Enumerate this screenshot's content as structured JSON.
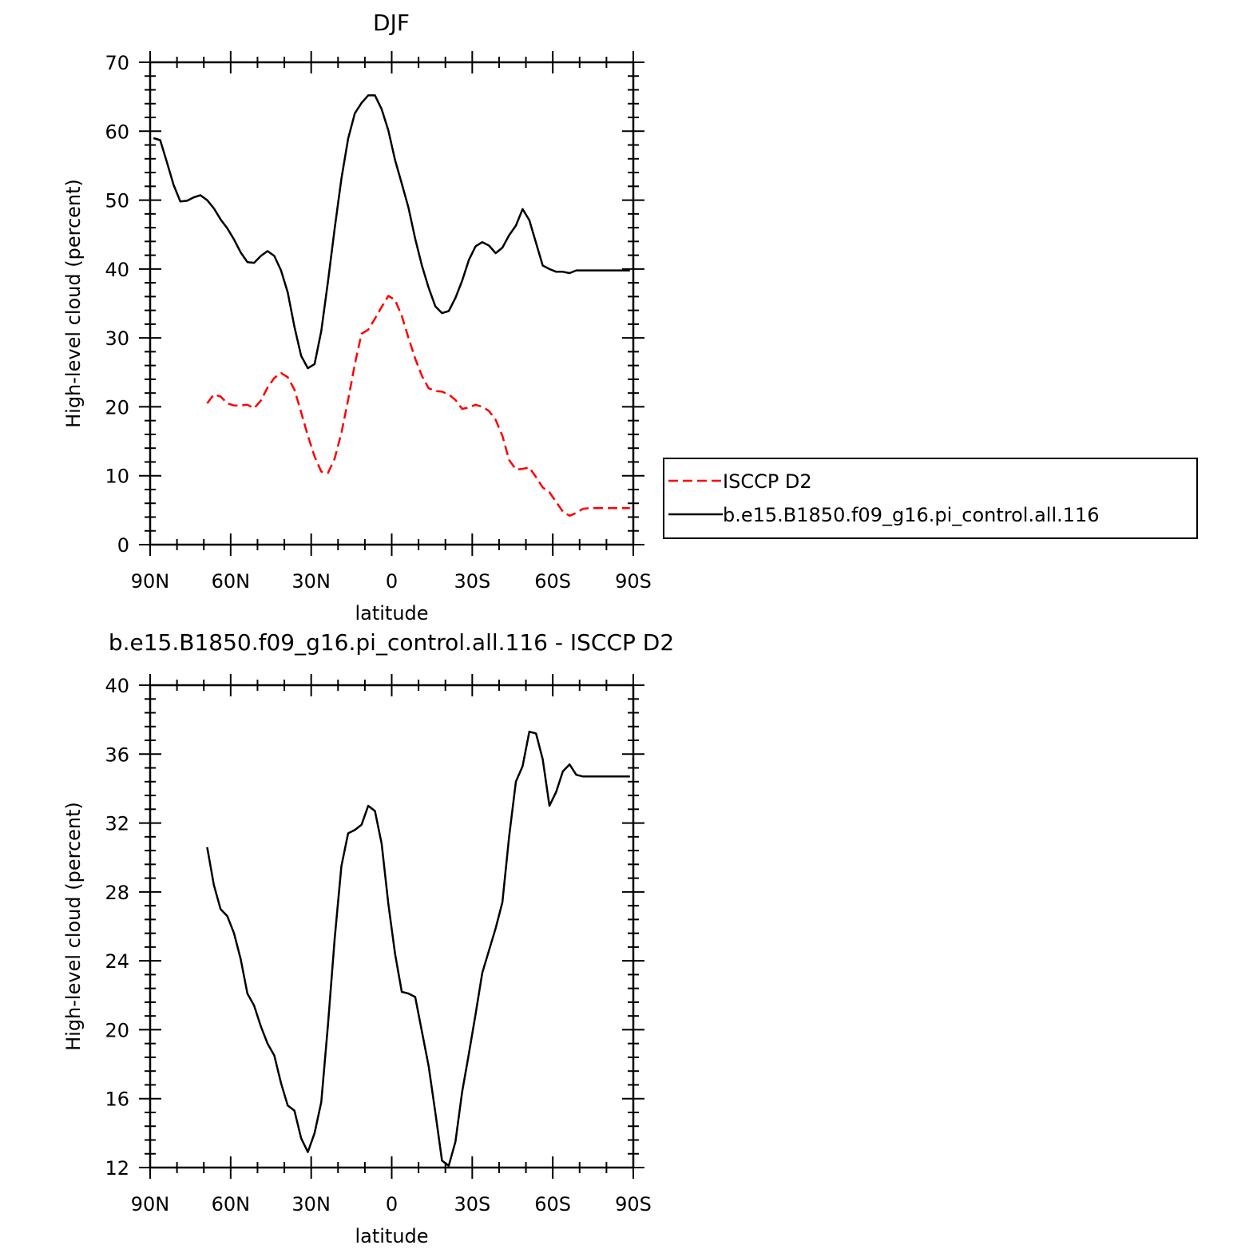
{
  "chart_data": [
    {
      "type": "line",
      "title": "DJF",
      "xlabel": "latitude",
      "ylabel": "High-level cloud (percent)",
      "xlim": [
        90,
        -90
      ],
      "ylim": [
        0,
        70
      ],
      "xticks": [
        90,
        60,
        30,
        0,
        -30,
        -60,
        -90
      ],
      "xtick_labels": [
        "90N",
        "60N",
        "30N",
        "0",
        "30S",
        "60S",
        "90S"
      ],
      "yticks": [
        0,
        10,
        20,
        30,
        40,
        50,
        60,
        70
      ],
      "ytick_labels": [
        "0",
        "10",
        "20",
        "30",
        "40",
        "50",
        "60",
        "70"
      ],
      "grid": false,
      "legend": "right",
      "series": [
        {
          "name": "ISCCP D2",
          "color": "#ff0000",
          "dash": "dashed",
          "x": [
            68.75,
            66.25,
            63.75,
            61.25,
            58.75,
            56.25,
            53.75,
            51.25,
            48.75,
            46.25,
            43.75,
            41.25,
            38.75,
            36.25,
            33.75,
            31.25,
            28.75,
            26.25,
            23.75,
            21.25,
            18.75,
            16.25,
            13.75,
            11.25,
            8.75,
            6.25,
            3.75,
            1.25,
            -1.25,
            -3.75,
            -6.25,
            -8.75,
            -11.25,
            -13.75,
            -16.25,
            -18.75,
            -21.25,
            -23.75,
            -26.25,
            -28.75,
            -31.25,
            -33.75,
            -36.25,
            -38.75,
            -41.25,
            -43.75,
            -46.25,
            -48.75,
            -51.25,
            -53.75,
            -56.25,
            -58.75,
            -61.25,
            -63.75,
            -66.25,
            -68.75,
            -71.25,
            -73.75,
            -76.25,
            -78.75,
            -81.25,
            -83.75,
            -86.25,
            -88.75
          ],
          "y": [
            20.5,
            21.8,
            21.5,
            20.5,
            20.2,
            20.2,
            20.3,
            19.8,
            20.9,
            22.8,
            24.2,
            24.9,
            24.3,
            22.5,
            19.2,
            15.8,
            12.8,
            10.6,
            10.4,
            12.5,
            16.2,
            21.0,
            26.2,
            30.6,
            31.2,
            32.8,
            34.5,
            36.1,
            35.5,
            33.2,
            30.0,
            27.0,
            24.5,
            22.7,
            22.3,
            22.2,
            21.8,
            21.0,
            19.7,
            19.9,
            20.3,
            20.0,
            19.4,
            18.1,
            15.8,
            12.3,
            10.9,
            11.0,
            11.2,
            9.8,
            8.3,
            7.6,
            6.2,
            4.8,
            4.2,
            4.6,
            5.2,
            5.3,
            5.3,
            5.3,
            5.3,
            5.3,
            5.3,
            5.3
          ]
        },
        {
          "name": "b.e15.B1850.f09_g16.pi_control.all.116",
          "color": "#000000",
          "dash": "solid",
          "x": [
            88.75,
            86.25,
            83.75,
            81.25,
            78.75,
            76.25,
            73.75,
            71.25,
            68.75,
            66.25,
            63.75,
            61.25,
            58.75,
            56.25,
            53.75,
            51.25,
            48.75,
            46.25,
            43.75,
            41.25,
            38.75,
            36.25,
            33.75,
            31.25,
            28.75,
            26.25,
            23.75,
            21.25,
            18.75,
            16.25,
            13.75,
            11.25,
            8.75,
            6.25,
            3.75,
            1.25,
            -1.25,
            -3.75,
            -6.25,
            -8.75,
            -11.25,
            -13.75,
            -16.25,
            -18.75,
            -21.25,
            -23.75,
            -26.25,
            -28.75,
            -31.25,
            -33.75,
            -36.25,
            -38.75,
            -41.25,
            -43.75,
            -46.25,
            -48.75,
            -51.25,
            -53.75,
            -56.25,
            -58.75,
            -61.25,
            -63.75,
            -66.25,
            -68.75,
            -71.25,
            -73.75,
            -76.25,
            -78.75,
            -81.25,
            -83.75,
            -86.25,
            -88.75
          ],
          "y": [
            59.0,
            58.7,
            55.5,
            52.2,
            49.8,
            49.9,
            50.4,
            50.7,
            50.0,
            48.8,
            47.2,
            45.9,
            44.3,
            42.4,
            41.0,
            40.9,
            41.9,
            42.6,
            41.9,
            39.8,
            36.6,
            31.6,
            27.4,
            25.6,
            26.2,
            31.0,
            38.2,
            45.9,
            53.1,
            58.9,
            62.6,
            64.1,
            65.2,
            65.2,
            63.2,
            60.1,
            55.8,
            52.4,
            48.9,
            44.4,
            40.5,
            37.3,
            34.6,
            33.6,
            33.9,
            35.8,
            38.3,
            41.3,
            43.3,
            43.9,
            43.4,
            42.3,
            43.1,
            44.9,
            46.3,
            48.7,
            47.1,
            43.8,
            40.5,
            40.0,
            39.6,
            39.6,
            39.4,
            39.8,
            39.8,
            39.8,
            39.8,
            39.8,
            39.8,
            39.8,
            39.8,
            39.8
          ]
        }
      ]
    },
    {
      "type": "line",
      "title": "b.e15.B1850.f09_g16.pi_control.all.116 - ISCCP D2",
      "xlabel": "latitude",
      "ylabel": "High-level cloud (percent)",
      "xlim": [
        90,
        -90
      ],
      "ylim": [
        12,
        40
      ],
      "xticks": [
        90,
        60,
        30,
        0,
        -30,
        -60,
        -90
      ],
      "xtick_labels": [
        "90N",
        "60N",
        "30N",
        "0",
        "30S",
        "60S",
        "90S"
      ],
      "yticks": [
        12,
        16,
        20,
        24,
        28,
        32,
        36,
        40
      ],
      "ytick_labels": [
        "12",
        "16",
        "20",
        "24",
        "28",
        "32",
        "36",
        "40"
      ],
      "grid": false,
      "series": [
        {
          "color": "#000000",
          "dash": "solid",
          "x": [
            68.75,
            66.25,
            63.75,
            61.25,
            58.75,
            56.25,
            53.75,
            51.25,
            48.75,
            46.25,
            43.75,
            41.25,
            38.75,
            36.25,
            33.75,
            31.25,
            28.75,
            26.25,
            23.75,
            21.25,
            18.75,
            16.25,
            13.75,
            11.25,
            8.75,
            6.25,
            3.75,
            1.25,
            -1.25,
            -3.75,
            -6.25,
            -8.75,
            -11.25,
            -13.75,
            -16.25,
            -18.75,
            -21.25,
            -23.75,
            -26.25,
            -28.75,
            -31.25,
            -33.75,
            -36.25,
            -38.75,
            -41.25,
            -43.75,
            -46.25,
            -48.75,
            -51.25,
            -53.75,
            -56.25,
            -58.75,
            -61.25,
            -63.75,
            -66.25,
            -68.75,
            -71.25,
            -73.75,
            -76.25,
            -78.75,
            -81.25,
            -83.75,
            -86.25,
            -88.75
          ],
          "y": [
            30.6,
            28.4,
            27.0,
            26.6,
            25.6,
            24.1,
            22.1,
            21.4,
            20.2,
            19.2,
            18.5,
            16.9,
            15.6,
            15.3,
            13.7,
            12.9,
            14.0,
            15.8,
            20.3,
            25.3,
            29.5,
            31.4,
            31.6,
            31.9,
            33.0,
            32.7,
            30.8,
            27.3,
            24.4,
            22.2,
            22.1,
            21.9,
            19.9,
            17.9,
            15.2,
            12.4,
            12.1,
            13.5,
            16.4,
            18.6,
            20.9,
            23.3,
            24.6,
            25.9,
            27.4,
            31.2,
            34.4,
            35.3,
            37.3,
            37.2,
            35.7,
            33.0,
            33.8,
            35.0,
            35.4,
            34.8,
            34.7,
            34.7,
            34.7,
            34.7,
            34.7,
            34.7,
            34.7,
            34.7
          ]
        }
      ]
    }
  ]
}
